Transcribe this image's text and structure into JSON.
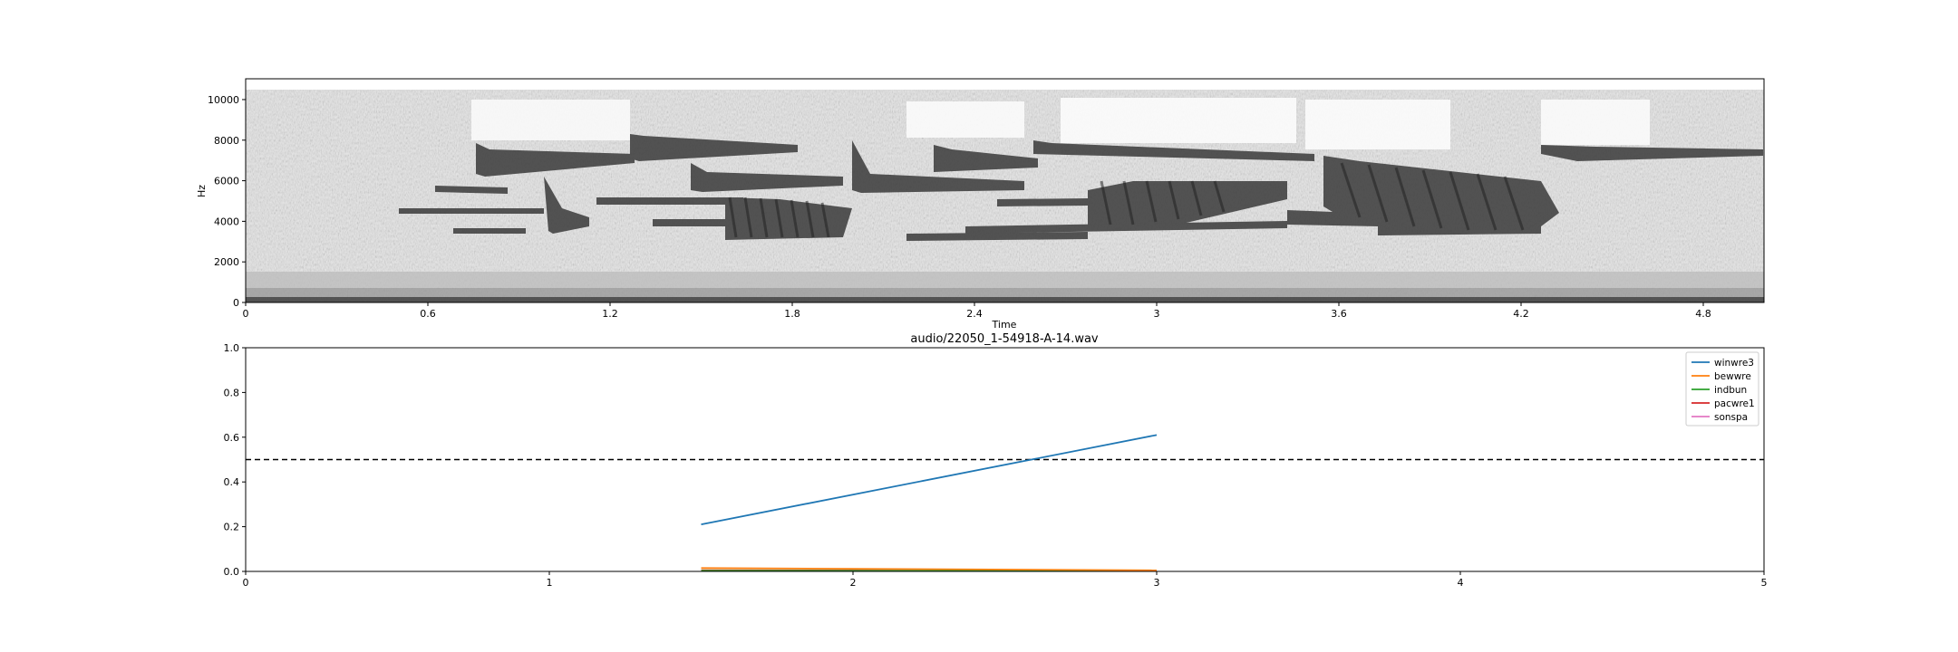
{
  "chart_data": [
    {
      "type": "heatmap",
      "title": "",
      "xlabel": "Time",
      "ylabel": "Hz",
      "xlim": [
        0,
        5
      ],
      "ylim": [
        0,
        11025
      ],
      "x_ticks": [
        0,
        0.6,
        1.2,
        1.8,
        2.4,
        3.0,
        3.6,
        4.2,
        4.8
      ],
      "x_tick_labels": [
        "0",
        "0.6",
        "1.2",
        "1.8",
        "2.4",
        "3",
        "3.6",
        "4.2",
        "4.8"
      ],
      "y_ticks": [
        0,
        2000,
        4000,
        6000,
        8000,
        10000
      ],
      "y_tick_labels": [
        "0",
        "2000",
        "4000",
        "6000",
        "8000",
        "10000"
      ],
      "colormap": "greys",
      "grid": false
    },
    {
      "type": "line",
      "title": "audio/22050_1-54918-A-14.wav",
      "xlabel": "",
      "ylabel": "",
      "xlim": [
        0,
        5
      ],
      "ylim": [
        0,
        1
      ],
      "x_ticks": [
        0,
        1,
        2,
        3,
        4,
        5
      ],
      "x_tick_labels": [
        "0",
        "1",
        "2",
        "3",
        "4",
        "5"
      ],
      "y_ticks": [
        0,
        0.2,
        0.4,
        0.6,
        0.8,
        1.0
      ],
      "y_tick_labels": [
        "0.0",
        "0.2",
        "0.4",
        "0.6",
        "0.8",
        "1.0"
      ],
      "x": [
        1.5,
        3.0
      ],
      "series": [
        {
          "name": "winwre3",
          "color": "#1f77b4",
          "values": [
            0.21,
            0.61
          ]
        },
        {
          "name": "bewwre",
          "color": "#ff7f0e",
          "values": [
            0.015,
            0.005
          ]
        },
        {
          "name": "indbun",
          "color": "#2ca02c",
          "values": [
            0.003,
            0.002
          ]
        },
        {
          "name": "pacwre1",
          "color": "#d62728",
          "values": [
            0.005,
            0.002
          ]
        },
        {
          "name": "sonspa",
          "color": "#e377c2",
          "values": [
            0.002,
            0.001
          ]
        }
      ],
      "threshold": {
        "value": 0.5,
        "style": "dashed",
        "color": "#000000"
      },
      "legend_position": "top-right",
      "grid": false
    }
  ]
}
